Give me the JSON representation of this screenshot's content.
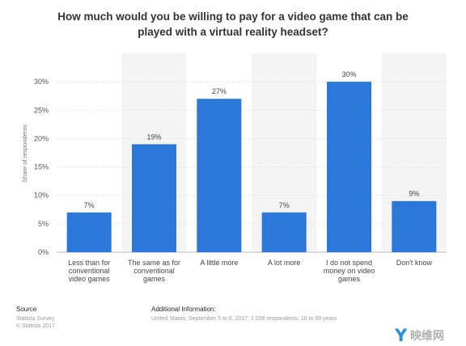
{
  "title_lines": [
    "How much would you be willing to pay for a video game that can be",
    "played with a virtual reality headset?"
  ],
  "chart_data": {
    "type": "bar",
    "categories": [
      [
        "Less than for",
        "conventional",
        "video games"
      ],
      [
        "The same as for",
        "conventional",
        "games"
      ],
      [
        "A little more"
      ],
      [
        "A lot more"
      ],
      [
        "I do not spend",
        "money on video",
        "games"
      ],
      [
        "Don't know"
      ]
    ],
    "values": [
      7,
      19,
      27,
      7,
      30,
      9
    ],
    "data_labels": [
      "7%",
      "19%",
      "27%",
      "7%",
      "30%",
      "9%"
    ],
    "ylabel": "Share of respondents",
    "yticks": [
      "0%",
      "5%",
      "10%",
      "15%",
      "20%",
      "25%",
      "30%"
    ],
    "ylim": [
      0,
      35
    ],
    "bar_color": "#2a78d8",
    "grid": true
  },
  "footer": {
    "source_heading": "Source",
    "source_lines": [
      "Statista Survey",
      "© Statista 2017"
    ],
    "info_heading": "Additional Information:",
    "info_text": "United States; September 5 to 6, 2017; 1,058 respondents; 18 to 69 years"
  },
  "watermark": {
    "letter": "Y",
    "text": "映维网"
  }
}
